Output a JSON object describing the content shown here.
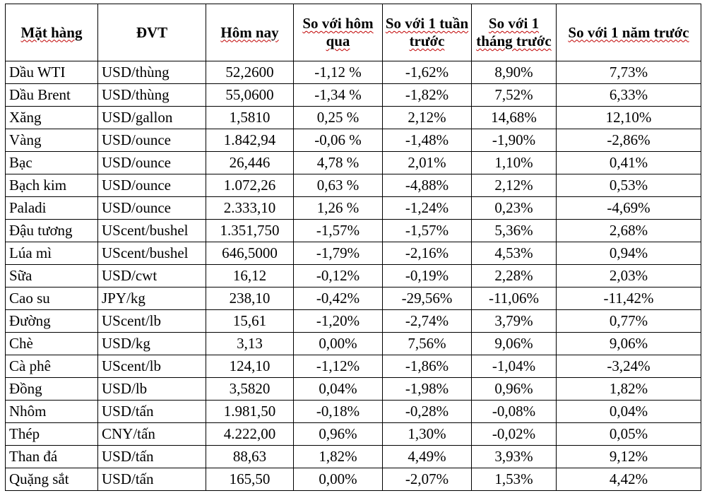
{
  "headers": [
    "Mặt hàng",
    "ĐVT",
    "Hôm nay",
    "So với hôm qua",
    "So với 1 tuần trước",
    "So với 1 tháng trước",
    "So với 1 năm trước"
  ],
  "rows": [
    [
      "Dầu WTI",
      "USD/thùng",
      "52,2600",
      "-1,12 %",
      "-1,62%",
      "8,90%",
      "7,73%"
    ],
    [
      "Dầu Brent",
      "USD/thùng",
      "55,0600",
      "-1,34 %",
      "-1,82%",
      "7,52%",
      "6,33%"
    ],
    [
      "Xăng",
      "USD/gallon",
      "1,5810",
      "0,25 %",
      "2,12%",
      "14,68%",
      "12,10%"
    ],
    [
      "Vàng",
      "USD/ounce",
      "1.842,94",
      "-0,06 %",
      "-1,48%",
      "-1,90%",
      "-2,86%"
    ],
    [
      "Bạc",
      "USD/ounce",
      "26,446",
      "4,78 %",
      "2,01%",
      "1,10%",
      "0,41%"
    ],
    [
      "Bạch kim",
      "USD/ounce",
      "1.072,26",
      "0,63 %",
      "-4,88%",
      "2,12%",
      "0,53%"
    ],
    [
      "Paladi",
      "USD/ounce",
      "2.333,10",
      "1,26 %",
      "-1,24%",
      "0,23%",
      "-4,69%"
    ],
    [
      "Đậu tương",
      "UScent/bushel",
      "1.351,750",
      "-1,57%",
      "-1,57%",
      "5,36%",
      "2,68%"
    ],
    [
      "Lúa mì",
      "UScent/bushel",
      "646,5000",
      "-1,79%",
      "-2,16%",
      "4,53%",
      "0,94%"
    ],
    [
      "Sữa",
      "USD/cwt",
      "16,12",
      "-0,12%",
      "-0,19%",
      "2,28%",
      "2,03%"
    ],
    [
      "Cao su",
      "JPY/kg",
      "238,10",
      "-0,42%",
      "-29,56%",
      "-11,06%",
      "-11,42%"
    ],
    [
      "Đường",
      "UScent/lb",
      "15,61",
      "-1,20%",
      "-2,74%",
      "3,79%",
      "0,77%"
    ],
    [
      "Chè",
      "USD/kg",
      "3,13",
      "0,00%",
      "7,56%",
      "9,06%",
      "9,06%"
    ],
    [
      "Cà phê",
      "UScent/lb",
      "124,10",
      "-1,12%",
      "-1,86%",
      "-1,04%",
      "-3,24%"
    ],
    [
      "Đồng",
      "USD/lb",
      "3,5820",
      "0,04%",
      "-1,98%",
      "0,96%",
      "1,82%"
    ],
    [
      "Nhôm",
      "USD/tấn",
      "1.981,50",
      "-0,18%",
      "-0,28%",
      "-0,08%",
      "0,04%"
    ],
    [
      "Thép",
      "CNY/tấn",
      "4.222,00",
      "0,96%",
      "1,30%",
      "-0,02%",
      "0,05%"
    ],
    [
      "Than đá",
      "USD/tấn",
      "88,63",
      "1,82%",
      "4,49%",
      "3,93%",
      "9,12%"
    ],
    [
      "Quặng sắt",
      "USD/tấn",
      "165,50",
      "0,00%",
      "-2,07%",
      "1,53%",
      "4,42%"
    ]
  ]
}
